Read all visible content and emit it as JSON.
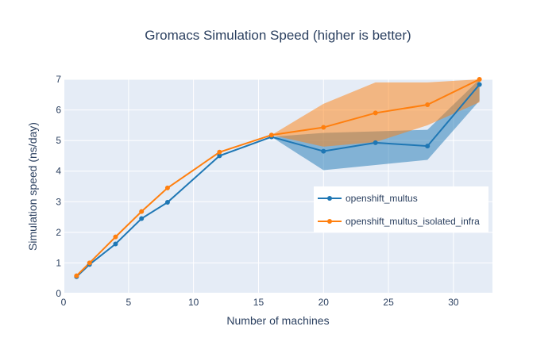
{
  "chart_data": {
    "type": "line",
    "title": "Gromacs Simulation Speed (higher is better)",
    "xlabel": "Number of machines",
    "ylabel": "Simulation speed (ns/day)",
    "xlim": [
      0,
      33
    ],
    "ylim": [
      0,
      7
    ],
    "x_ticks": [
      0,
      5,
      10,
      15,
      20,
      25,
      30
    ],
    "y_ticks": [
      0,
      1,
      2,
      3,
      4,
      5,
      6,
      7
    ],
    "grid": true,
    "legend_position": "right",
    "series": [
      {
        "name": "openshift_multus",
        "color": "#1f77b4",
        "x": [
          1,
          2,
          4,
          6,
          8,
          12,
          16,
          20,
          24,
          28,
          32
        ],
        "y": [
          0.55,
          0.95,
          1.62,
          2.45,
          2.98,
          4.5,
          5.12,
          4.65,
          4.93,
          4.82,
          6.83
        ],
        "band_upper": [
          0.55,
          0.95,
          1.62,
          2.45,
          2.98,
          4.5,
          5.12,
          5.25,
          5.3,
          5.35,
          7.0
        ],
        "band_lower": [
          0.55,
          0.95,
          1.62,
          2.45,
          2.98,
          4.5,
          5.12,
          4.03,
          4.2,
          4.37,
          6.3
        ]
      },
      {
        "name": "openshift_multus_isolated_infra",
        "color": "#ff7f0e",
        "x": [
          1,
          2,
          4,
          6,
          8,
          12,
          16,
          20,
          24,
          28,
          32
        ],
        "y": [
          0.58,
          1.0,
          1.85,
          2.68,
          3.45,
          4.62,
          5.18,
          5.43,
          5.9,
          6.17,
          7.0
        ],
        "band_upper": [
          0.58,
          1.0,
          1.85,
          2.68,
          3.45,
          4.62,
          5.18,
          6.2,
          6.9,
          6.9,
          7.0
        ],
        "band_lower": [
          0.58,
          1.0,
          1.85,
          2.68,
          3.45,
          4.62,
          5.18,
          4.8,
          4.95,
          5.5,
          6.25
        ]
      }
    ]
  }
}
